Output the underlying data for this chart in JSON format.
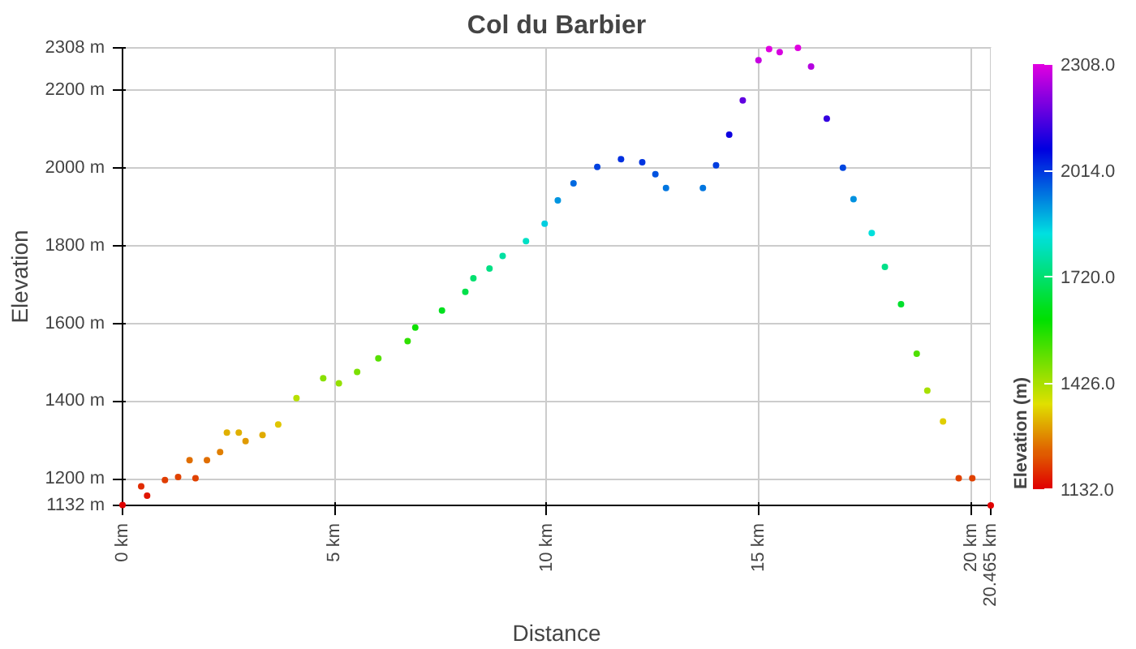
{
  "chart_data": {
    "type": "scatter",
    "title": "Col du Barbier",
    "xlabel": "Distance",
    "ylabel": "Elevation",
    "clabel": "Elevation (m)",
    "x": [
      0,
      0.44,
      0.58,
      1.0,
      1.31,
      1.58,
      1.72,
      1.99,
      2.3,
      2.46,
      2.74,
      2.9,
      3.3,
      3.67,
      4.1,
      4.73,
      5.1,
      5.53,
      6.03,
      6.72,
      6.9,
      7.53,
      8.08,
      8.27,
      8.65,
      8.96,
      9.51,
      9.95,
      10.26,
      10.63,
      11.19,
      11.75,
      12.25,
      12.56,
      12.81,
      13.68,
      13.99,
      14.3,
      14.62,
      14.99,
      15.24,
      15.49,
      15.92,
      16.23,
      16.6,
      16.98,
      17.23,
      17.66,
      17.97,
      18.35,
      18.72,
      18.97,
      19.34,
      19.71,
      20.03,
      20.465
    ],
    "values": [
      1133,
      1181,
      1157,
      1197,
      1205,
      1248,
      1202,
      1248,
      1269,
      1319,
      1319,
      1297,
      1313,
      1340,
      1408,
      1459,
      1446,
      1475,
      1510,
      1554,
      1589,
      1633,
      1681,
      1716,
      1741,
      1773,
      1811,
      1856,
      1916,
      1960,
      2002,
      2022,
      2014,
      1983,
      1948,
      1948,
      2006,
      2085,
      2173,
      2276,
      2305,
      2297,
      2308,
      2260,
      2126,
      2000,
      1919,
      1832,
      1745,
      1649,
      1522,
      1427,
      1348,
      1202,
      1202,
      1132
    ],
    "cvalues": [
      1133,
      1181,
      1157,
      1197,
      1205,
      1248,
      1202,
      1248,
      1269,
      1319,
      1319,
      1297,
      1313,
      1340,
      1408,
      1459,
      1446,
      1475,
      1510,
      1554,
      1589,
      1633,
      1681,
      1716,
      1741,
      1773,
      1811,
      1856,
      1916,
      1960,
      2002,
      2022,
      2014,
      1983,
      1948,
      1948,
      2006,
      2085,
      2173,
      2276,
      2305,
      2297,
      2308,
      2260,
      2126,
      2000,
      1919,
      1832,
      1745,
      1649,
      1522,
      1427,
      1348,
      1202,
      1202,
      1132
    ],
    "clim": [
      1132,
      2308
    ],
    "cticks": [
      {
        "value": 1132,
        "label": "1132.0"
      },
      {
        "value": 1426,
        "label": "1426.0"
      },
      {
        "value": 1720,
        "label": "1720.0"
      },
      {
        "value": 2014,
        "label": "2014.0"
      },
      {
        "value": 2308,
        "label": "2308.0"
      }
    ],
    "xlim": [
      0,
      20.465
    ],
    "xticks": [
      {
        "value": 0,
        "label": "0 km"
      },
      {
        "value": 5,
        "label": "5 km"
      },
      {
        "value": 10,
        "label": "10 km"
      },
      {
        "value": 15,
        "label": "15 km"
      },
      {
        "value": 20,
        "label": "20 km"
      },
      {
        "value": 20.465,
        "label": "20.465 km"
      }
    ],
    "ylim": [
      1132,
      2308
    ],
    "yticks": [
      {
        "value": 1132,
        "label": "1132 m"
      },
      {
        "value": 1200,
        "label": "1200 m"
      },
      {
        "value": 1400,
        "label": "1400 m"
      },
      {
        "value": 1600,
        "label": "1600 m"
      },
      {
        "value": 1800,
        "label": "1800 m"
      },
      {
        "value": 2000,
        "label": "2000 m"
      },
      {
        "value": 2200,
        "label": "2200 m"
      },
      {
        "value": 2308,
        "label": "2308 m"
      }
    ],
    "grid": true,
    "marker": "circle"
  }
}
